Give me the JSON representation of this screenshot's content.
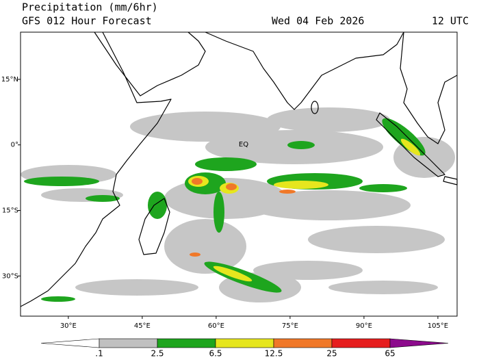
{
  "header": {
    "title": "Precipitation (mm/6hr)",
    "subtitle": "GFS 012 Hour Forecast",
    "date": "Wed 04 Feb 2026",
    "time": "12 UTC"
  },
  "map": {
    "lonlim": [
      20.3,
      108.9
    ],
    "latlim": [
      -39.2,
      25.8
    ],
    "equator_label": "EQ",
    "lat_ticks": [
      {
        "value": 15,
        "label": "15°N"
      },
      {
        "value": 0,
        "label": "0°"
      },
      {
        "value": -15,
        "label": "15°S"
      },
      {
        "value": -30,
        "label": "30°S"
      }
    ],
    "lon_ticks": [
      {
        "value": 30,
        "label": "30°E"
      },
      {
        "value": 45,
        "label": "45°E"
      },
      {
        "value": 60,
        "label": "60°E"
      },
      {
        "value": 75,
        "label": "75°E"
      },
      {
        "value": 90,
        "label": "90°E"
      },
      {
        "value": 105,
        "label": "105°E"
      }
    ]
  },
  "legend": {
    "levels": [
      {
        "value": 0.1,
        "label": ".1"
      },
      2.5,
      6.5,
      12.5,
      25,
      65
    ],
    "colors": [
      "#ffffff",
      "#c0c0c0",
      "#1ea51e",
      "#e6e61e",
      "#f07828",
      "#e61e1e",
      "#8c0a8c"
    ]
  }
}
